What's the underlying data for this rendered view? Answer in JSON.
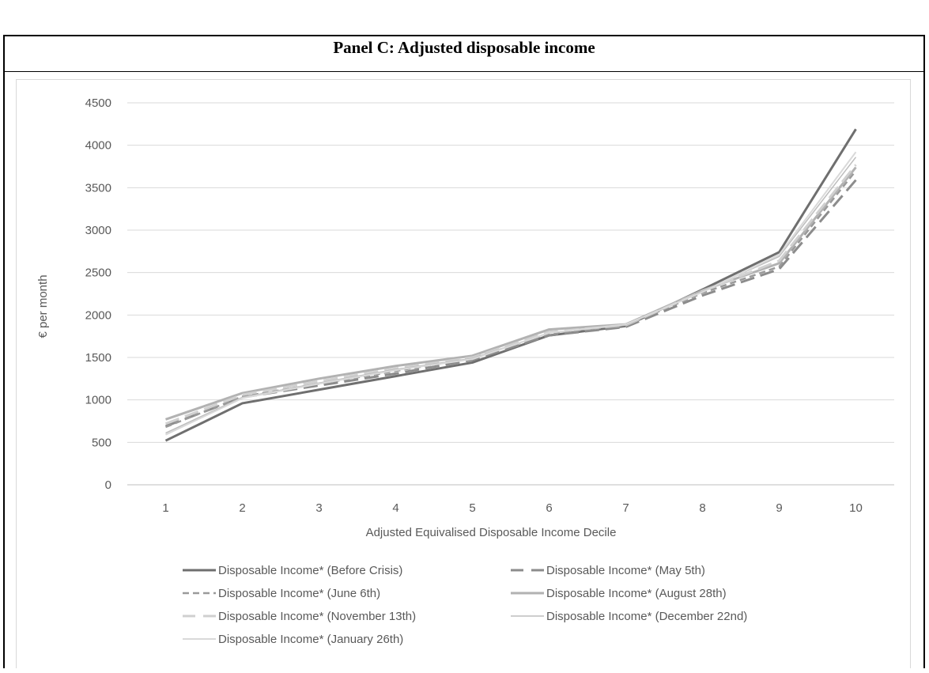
{
  "panel": {
    "title": "Panel C: Adjusted disposable income"
  },
  "chart_data": {
    "type": "line",
    "xlabel": "Adjusted Equivalised Disposable Income Decile",
    "ylabel": "€ per month",
    "ylim": [
      0,
      4500
    ],
    "yticks": [
      0,
      500,
      1000,
      1500,
      2000,
      2500,
      3000,
      3500,
      4000,
      4500
    ],
    "categories": [
      "1",
      "2",
      "3",
      "4",
      "5",
      "6",
      "7",
      "8",
      "9",
      "10"
    ],
    "grid": "horizontal",
    "legend_position": "bottom",
    "series": [
      {
        "name": "Disposable Income* (Before Crisis)",
        "color": "#6f6f6f",
        "dash": "solid",
        "width": 3,
        "values": [
          520,
          960,
          1120,
          1280,
          1440,
          1760,
          1870,
          2300,
          2740,
          4190
        ]
      },
      {
        "name": "Disposable Income* (May 5th)",
        "color": "#8c8c8c",
        "dash": "longdash",
        "width": 3,
        "values": [
          690,
          1030,
          1170,
          1310,
          1470,
          1760,
          1860,
          2230,
          2540,
          3590
        ]
      },
      {
        "name": "Disposable Income* (June 6th)",
        "color": "#9a9a9a",
        "dash": "dash",
        "width": 2.5,
        "values": [
          680,
          1040,
          1190,
          1340,
          1490,
          1780,
          1880,
          2260,
          2570,
          3700
        ]
      },
      {
        "name": "Disposable Income* (August 28th)",
        "color": "#b2b2b2",
        "dash": "solid",
        "width": 3,
        "values": [
          770,
          1080,
          1250,
          1400,
          1520,
          1830,
          1890,
          2290,
          2610,
          3740
        ]
      },
      {
        "name": "Disposable Income* (November 13th)",
        "color": "#d0d0d0",
        "dash": "longdash",
        "width": 3,
        "values": [
          720,
          1060,
          1220,
          1370,
          1500,
          1800,
          1880,
          2280,
          2640,
          3770
        ]
      },
      {
        "name": "Disposable Income* (December 22nd)",
        "color": "#bdbdbd",
        "dash": "solid",
        "width": 1.5,
        "values": [
          610,
          1030,
          1200,
          1360,
          1490,
          1790,
          1880,
          2280,
          2690,
          3860
        ]
      },
      {
        "name": "Disposable Income* (January 26th)",
        "color": "#d9d9d9",
        "dash": "solid",
        "width": 2,
        "values": [
          590,
          1020,
          1190,
          1350,
          1480,
          1790,
          1890,
          2270,
          2710,
          3920
        ]
      }
    ]
  }
}
